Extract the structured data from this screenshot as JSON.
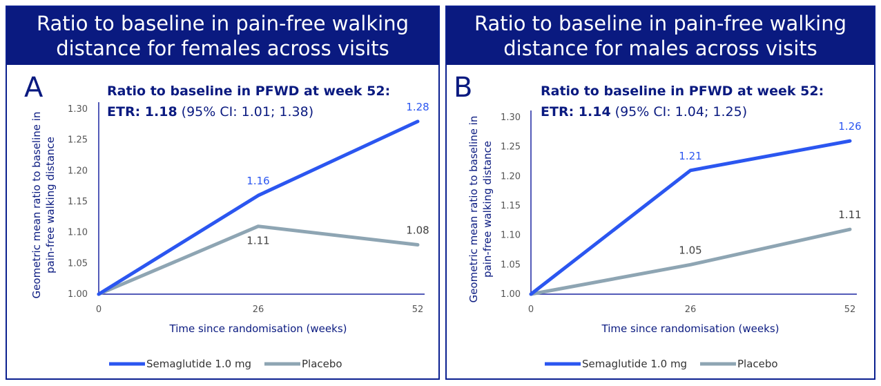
{
  "colors": {
    "header_bg": "#0a1a80",
    "border": "#0a1f8f",
    "axis": "#1a23a0",
    "semaglutide": "#2b56f0",
    "placebo": "#8ea5b3",
    "label_dark": "#404040",
    "title_text": "#0a1a80"
  },
  "panels": [
    {
      "header": "Ratio to baseline in pain-free walking distance for females across visits",
      "letter": "A",
      "annotation_title": "Ratio to baseline in PFWD at week 52:",
      "etr_label": "ETR: 1.18",
      "etr_ci": "(95% CI: 1.01; 1.38)"
    },
    {
      "header": "Ratio to baseline in pain-free walking distance for males across visits",
      "letter": "B",
      "annotation_title": "Ratio to baseline in PFWD at week 52:",
      "etr_label": "ETR: 1.14",
      "etr_ci": "(95% CI: 1.04; 1.25)"
    }
  ],
  "chart_data": [
    {
      "type": "line",
      "title": "Ratio to baseline in pain-free walking distance for females across visits",
      "xlabel": "Time since randomisation (weeks)",
      "ylabel": "Geometric mean ratio to baseline in pain-free walking distance",
      "x": [
        0,
        26,
        52
      ],
      "x_ticks": [
        "0",
        "26",
        "52"
      ],
      "y_ticks": [
        "1.00",
        "1.05",
        "1.10",
        "1.15",
        "1.20",
        "1.25",
        "1.30"
      ],
      "ylim": [
        1.0,
        1.3
      ],
      "series": [
        {
          "name": "Semaglutide 1.0 mg",
          "values": [
            1.0,
            1.16,
            1.28
          ],
          "labels": [
            "",
            "1.16",
            "1.28"
          ]
        },
        {
          "name": "Placebo",
          "values": [
            1.0,
            1.11,
            1.08
          ],
          "labels": [
            "",
            "1.11",
            "1.08"
          ]
        }
      ],
      "legend": "bottom",
      "grid": false
    },
    {
      "type": "line",
      "title": "Ratio to baseline in pain-free walking distance for males across visits",
      "xlabel": "Time since randomisation (weeks)",
      "ylabel": "Geometric mean ratio to baseline in pain-free walking distance",
      "x": [
        0,
        26,
        52
      ],
      "x_ticks": [
        "0",
        "26",
        "52"
      ],
      "y_ticks": [
        "1.00",
        "1.05",
        "1.10",
        "1.15",
        "1.20",
        "1.25",
        "1.30"
      ],
      "ylim": [
        1.0,
        1.3
      ],
      "series": [
        {
          "name": "Semaglutide 1.0 mg",
          "values": [
            1.0,
            1.21,
            1.26
          ],
          "labels": [
            "",
            "1.21",
            "1.26"
          ]
        },
        {
          "name": "Placebo",
          "values": [
            1.0,
            1.05,
            1.11
          ],
          "labels": [
            "",
            "1.05",
            "1.11"
          ]
        }
      ],
      "legend": "bottom",
      "grid": false
    }
  ]
}
